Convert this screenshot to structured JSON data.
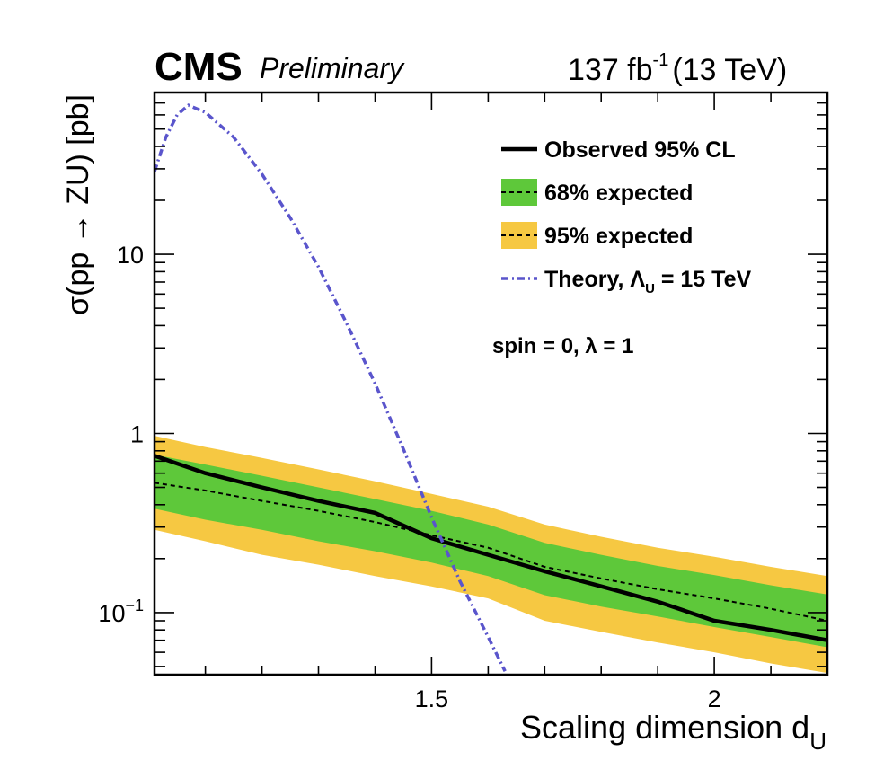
{
  "header": {
    "experiment": "CMS",
    "status": "Preliminary",
    "lumi_value": "137 fb",
    "lumi_exp": "-1",
    "energy": "(13 TeV)"
  },
  "annotation": {
    "params": "spin = 0,  λ = 1"
  },
  "chart_data": {
    "type": "line",
    "title": "",
    "xlabel": "Scaling dimension d",
    "xlabel_sub": "U",
    "ylabel": "σ(pp → ZU) [pb]",
    "xlim": [
      1.01,
      2.2
    ],
    "ylim": [
      0.045,
      80
    ],
    "y_scale": "log",
    "grid": false,
    "legend_position": "top-right",
    "x_tick_labels": [
      {
        "value": 1.5,
        "text": "1.5"
      },
      {
        "value": 2.0,
        "text": "2"
      }
    ],
    "y_tick_labels": [
      {
        "value": 0.1,
        "base": "10",
        "exp": "−1"
      },
      {
        "value": 1,
        "base": "1",
        "exp": ""
      },
      {
        "value": 10,
        "base": "10",
        "exp": ""
      }
    ],
    "legend": [
      {
        "key": "observed",
        "label": "Observed 95% CL"
      },
      {
        "key": "band68",
        "label": "68% expected"
      },
      {
        "key": "band95",
        "label": "95% expected"
      },
      {
        "key": "theory",
        "label": "Theory,  Λ",
        "label_sub": "U",
        "label_tail": " = 15 TeV"
      }
    ],
    "colors": {
      "observed": "#000000",
      "expected": "#000000",
      "band68": "#5ec83a",
      "band95": "#f6c842",
      "theory": "#5a55cc"
    },
    "x": [
      1.01,
      1.1,
      1.2,
      1.3,
      1.4,
      1.5,
      1.6,
      1.7,
      1.8,
      1.9,
      2.0,
      2.1,
      2.2
    ],
    "series": [
      {
        "key": "observed",
        "name": "Observed 95% CL",
        "values": [
          0.75,
          0.6,
          0.5,
          0.42,
          0.36,
          0.26,
          0.21,
          0.17,
          0.14,
          0.115,
          0.09,
          0.08,
          0.07
        ]
      },
      {
        "key": "expected",
        "name": "",
        "values": [
          0.53,
          0.48,
          0.42,
          0.37,
          0.32,
          0.27,
          0.23,
          0.18,
          0.155,
          0.135,
          0.12,
          0.105,
          0.09
        ]
      }
    ],
    "bands": [
      {
        "key": "band95",
        "name": "95% expected",
        "low": [
          0.29,
          0.25,
          0.21,
          0.185,
          0.16,
          0.14,
          0.12,
          0.09,
          0.078,
          0.068,
          0.06,
          0.052,
          0.046
        ],
        "high": [
          0.97,
          0.84,
          0.73,
          0.63,
          0.54,
          0.46,
          0.39,
          0.31,
          0.265,
          0.23,
          0.205,
          0.18,
          0.16
        ]
      },
      {
        "key": "band68",
        "name": "68% expected",
        "low": [
          0.38,
          0.33,
          0.29,
          0.25,
          0.22,
          0.19,
          0.16,
          0.125,
          0.108,
          0.095,
          0.083,
          0.073,
          0.064
        ]
      },
      {
        "key": "band68_high",
        "high": [
          0.76,
          0.67,
          0.58,
          0.5,
          0.43,
          0.37,
          0.31,
          0.245,
          0.21,
          0.182,
          0.162,
          0.142,
          0.126
        ]
      }
    ],
    "theory": {
      "name": "Theory, Λ_U = 15 TeV",
      "x": [
        1.01,
        1.03,
        1.05,
        1.07,
        1.1,
        1.15,
        1.2,
        1.25,
        1.3,
        1.35,
        1.4,
        1.45,
        1.5,
        1.55,
        1.6,
        1.63
      ],
      "values": [
        29,
        45,
        60,
        68,
        62,
        45,
        28,
        16,
        8.5,
        4.1,
        1.9,
        0.82,
        0.34,
        0.15,
        0.073,
        0.047
      ]
    }
  }
}
